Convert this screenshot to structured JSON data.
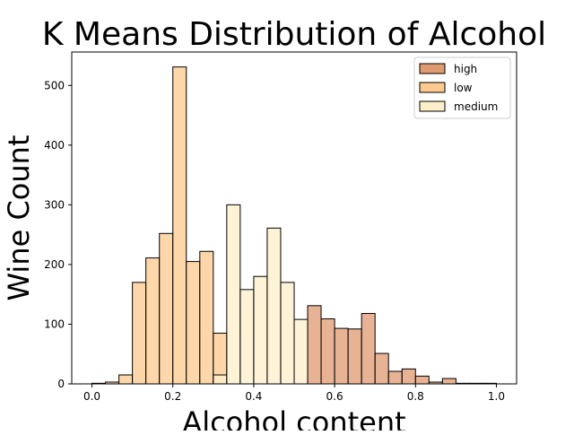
{
  "chart_data": {
    "type": "bar",
    "title": "K Means Distribution of Alcohol",
    "xlabel": "Alcohol content",
    "ylabel": "Wine Count",
    "xlim": [
      -0.05,
      1.05
    ],
    "ylim": [
      0,
      556
    ],
    "xticks": [
      0.0,
      0.2,
      0.4,
      0.6,
      0.8,
      1.0
    ],
    "xtick_labels": [
      "0.0",
      "0.2",
      "0.4",
      "0.6",
      "0.8",
      "1.0"
    ],
    "yticks": [
      0,
      100,
      200,
      300,
      400,
      500
    ],
    "ytick_labels": [
      "0",
      "100",
      "200",
      "300",
      "400",
      "500"
    ],
    "grid": false,
    "legend_position": "top-right",
    "bin_width": 0.0333,
    "series": [
      {
        "name": "high",
        "color": "#e09a72",
        "bins": [
          {
            "x": 0.5333,
            "count": 131
          },
          {
            "x": 0.5667,
            "count": 109
          },
          {
            "x": 0.6,
            "count": 93
          },
          {
            "x": 0.6333,
            "count": 92
          },
          {
            "x": 0.6667,
            "count": 118
          },
          {
            "x": 0.7,
            "count": 51
          },
          {
            "x": 0.7333,
            "count": 21
          },
          {
            "x": 0.7667,
            "count": 25
          },
          {
            "x": 0.8,
            "count": 13
          },
          {
            "x": 0.8333,
            "count": 3
          },
          {
            "x": 0.8667,
            "count": 9
          },
          {
            "x": 0.9,
            "count": 1
          },
          {
            "x": 0.9333,
            "count": 1
          },
          {
            "x": 0.9667,
            "count": 1
          }
        ]
      },
      {
        "name": "low",
        "color": "#fcc98e",
        "bins": [
          {
            "x": 0.0,
            "count": 1
          },
          {
            "x": 0.0333,
            "count": 3
          },
          {
            "x": 0.0667,
            "count": 15
          },
          {
            "x": 0.1,
            "count": 170
          },
          {
            "x": 0.1333,
            "count": 211
          },
          {
            "x": 0.1667,
            "count": 252
          },
          {
            "x": 0.2,
            "count": 531
          },
          {
            "x": 0.2333,
            "count": 205
          },
          {
            "x": 0.2667,
            "count": 222
          },
          {
            "x": 0.3,
            "count": 85
          }
        ]
      },
      {
        "name": "medium",
        "color": "#fdefca",
        "bins": [
          {
            "x": 0.3,
            "count": 15
          },
          {
            "x": 0.3333,
            "count": 300
          },
          {
            "x": 0.3667,
            "count": 158
          },
          {
            "x": 0.4,
            "count": 180
          },
          {
            "x": 0.4333,
            "count": 261
          },
          {
            "x": 0.4667,
            "count": 170
          },
          {
            "x": 0.5,
            "count": 108
          }
        ]
      }
    ]
  }
}
